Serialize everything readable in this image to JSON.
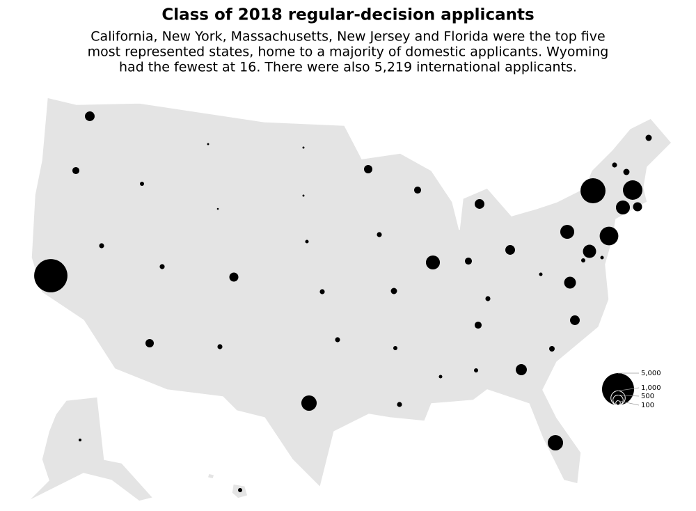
{
  "chart_data": {
    "type": "bubble_map",
    "title": "Class of 2018 regular-decision applicants",
    "subtitle": [
      "California, New York, Massachusetts, New Jersey and Florida were the top five",
      "most represented states, home to a majority of domestic applicants. Wyoming",
      "had the fewest at 16. There were also 5,219 international applicants."
    ],
    "color": "#000000",
    "values": [
      460,
      240,
      5400,
      120,
      85,
      20,
      16,
      120,
      340,
      400,
      120,
      20,
      20,
      60,
      120,
      120,
      1150,
      340,
      120,
      190,
      85,
      120,
      240,
      950,
      460,
      240,
      460,
      120,
      240,
      60,
      85,
      600,
      1150,
      150,
      460,
      680,
      60,
      950,
      3050,
      120,
      190,
      190,
      1850,
      950,
      400,
      1700,
      60,
      850,
      85,
      40,
      85
    ],
    "legend": [
      {
        "value": 5000,
        "label": "5,000"
      },
      {
        "value": 1000,
        "label": "1,000"
      },
      {
        "value": 500,
        "label": "500"
      },
      {
        "value": 100,
        "label": "100"
      }
    ]
  }
}
